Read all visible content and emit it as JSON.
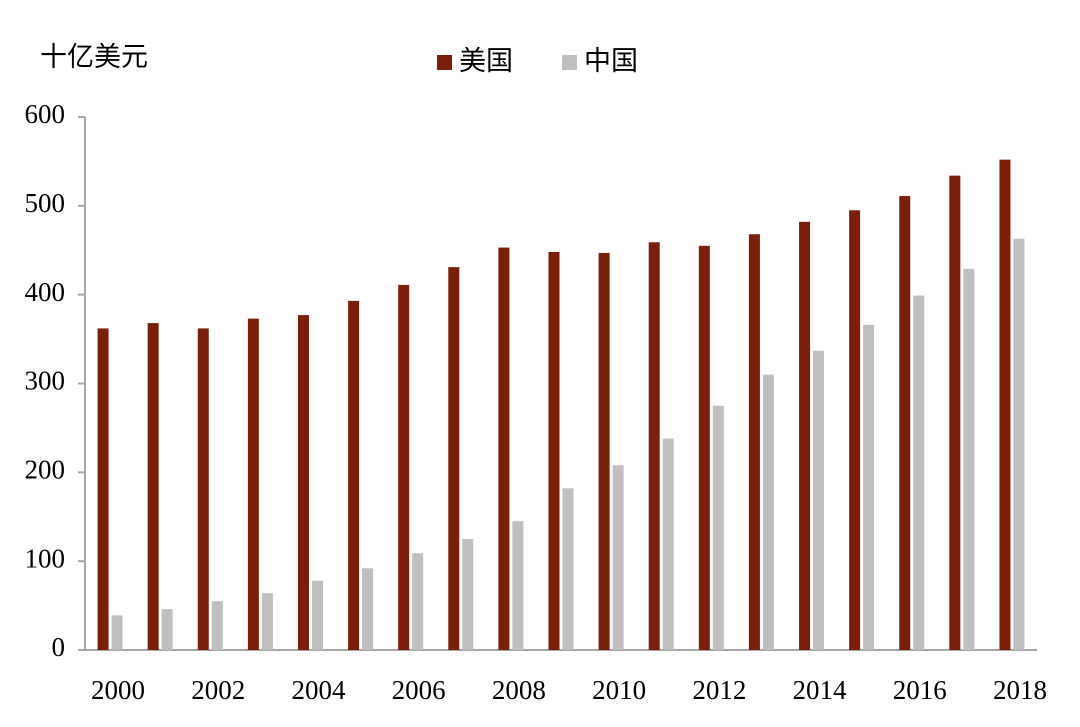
{
  "chart_data": {
    "type": "bar",
    "y_label": "十亿美元",
    "categories": [
      "2000",
      null,
      "2002",
      null,
      "2004",
      null,
      "2006",
      null,
      "2008",
      null,
      "2010",
      null,
      "2012",
      null,
      "2014",
      null,
      "2016",
      null,
      "2018"
    ],
    "series": [
      {
        "name": "美国",
        "color": "#7b1f0a",
        "values": [
          362,
          368,
          362,
          373,
          377,
          393,
          411,
          431,
          453,
          448,
          447,
          459,
          455,
          468,
          482,
          495,
          511,
          534,
          552
        ]
      },
      {
        "name": "中国",
        "color": "#bfbfbf",
        "values": [
          39,
          46,
          55,
          64,
          78,
          92,
          109,
          125,
          145,
          182,
          208,
          238,
          275,
          310,
          337,
          366,
          399,
          429,
          463
        ]
      }
    ],
    "ylim": [
      0,
      600
    ],
    "yticks": [
      0,
      100,
      200,
      300,
      400,
      500,
      600
    ],
    "grid": false
  }
}
